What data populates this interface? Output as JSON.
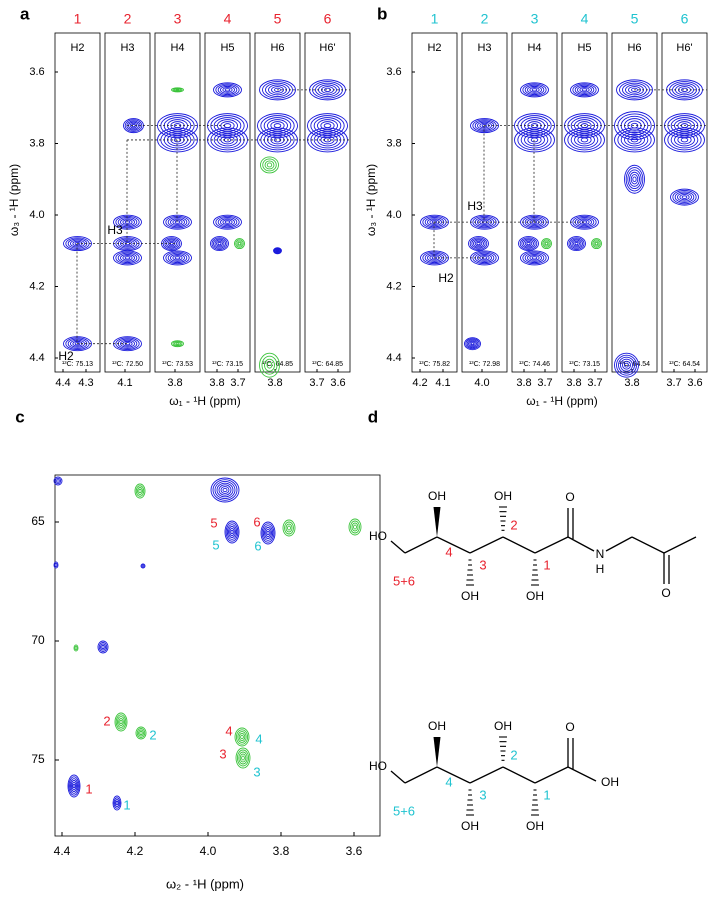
{
  "panel_a": {
    "label": "a",
    "columns": [
      "1",
      "2",
      "3",
      "4",
      "5",
      "6"
    ],
    "headers": [
      "H2",
      "H3",
      "H4",
      "H5",
      "H6",
      "H6'"
    ],
    "carbon_labels": [
      "¹³C: 75.13",
      "¹³C: 72.50",
      "¹³C: 73.53",
      "¹³C: 73.15",
      "¹³C: 64.85",
      "¹³C: 64.85"
    ],
    "yticks": [
      "3.6",
      "3.8",
      "4.0",
      "4.2",
      "4.4"
    ],
    "xticks": [
      [
        "4.4",
        "4.3"
      ],
      [
        "4.1"
      ],
      [
        "3.8"
      ],
      [
        "3.8",
        "3.7"
      ],
      [
        "3.8"
      ],
      [
        "3.7",
        "3.6"
      ]
    ],
    "ylabel": "ω₃ - ¹H (ppm)",
    "xlabel": "ω₁ - ¹H (ppm)",
    "peak_labels": [
      "H3",
      "H2"
    ]
  },
  "panel_b": {
    "label": "b",
    "columns": [
      "1",
      "2",
      "3",
      "4",
      "5",
      "6"
    ],
    "headers": [
      "H2",
      "H3",
      "H4",
      "H5",
      "H6",
      "H6'"
    ],
    "carbon_labels": [
      "¹³C: 75.82",
      "¹³C: 72.98",
      "¹³C: 74.46",
      "¹³C: 73.15",
      "¹³C: 64.54",
      "¹³C: 64.54"
    ],
    "yticks": [
      "3.6",
      "3.8",
      "4.0",
      "4.2",
      "4.4"
    ],
    "xticks": [
      [
        "4.2",
        "4.1"
      ],
      [
        "4.0"
      ],
      [
        "3.8",
        "3.7"
      ],
      [
        "3.8",
        "3.7"
      ],
      [
        "3.8"
      ],
      [
        "3.7",
        "3.6"
      ]
    ],
    "ylabel": "ω₃ - ¹H (ppm)",
    "xlabel": "ω₁ - ¹H (ppm)",
    "peak_labels": [
      "H3",
      "H2"
    ]
  },
  "panel_c": {
    "label": "c",
    "xticks": [
      "4.4",
      "4.2",
      "4.0",
      "3.8",
      "3.6"
    ],
    "yticks": [
      "65",
      "70",
      "75"
    ],
    "xlabel": "ω₂ - ¹H (ppm)",
    "red_labels": [
      "5",
      "6",
      "2",
      "4",
      "3",
      "1"
    ],
    "cyan_labels": [
      "5",
      "6",
      "2",
      "4",
      "3",
      "1"
    ]
  },
  "panel_d": {
    "label": "d",
    "top": [
      "HO",
      "OH",
      "OH",
      "OH",
      "OH",
      "O",
      "N",
      "H",
      "O",
      "4",
      "3",
      "2",
      "1",
      "5+6"
    ],
    "bottom": [
      "HO",
      "OH",
      "OH",
      "OH",
      "OH",
      "O",
      "OH",
      "4",
      "3",
      "2",
      "1",
      "5+6"
    ]
  }
}
